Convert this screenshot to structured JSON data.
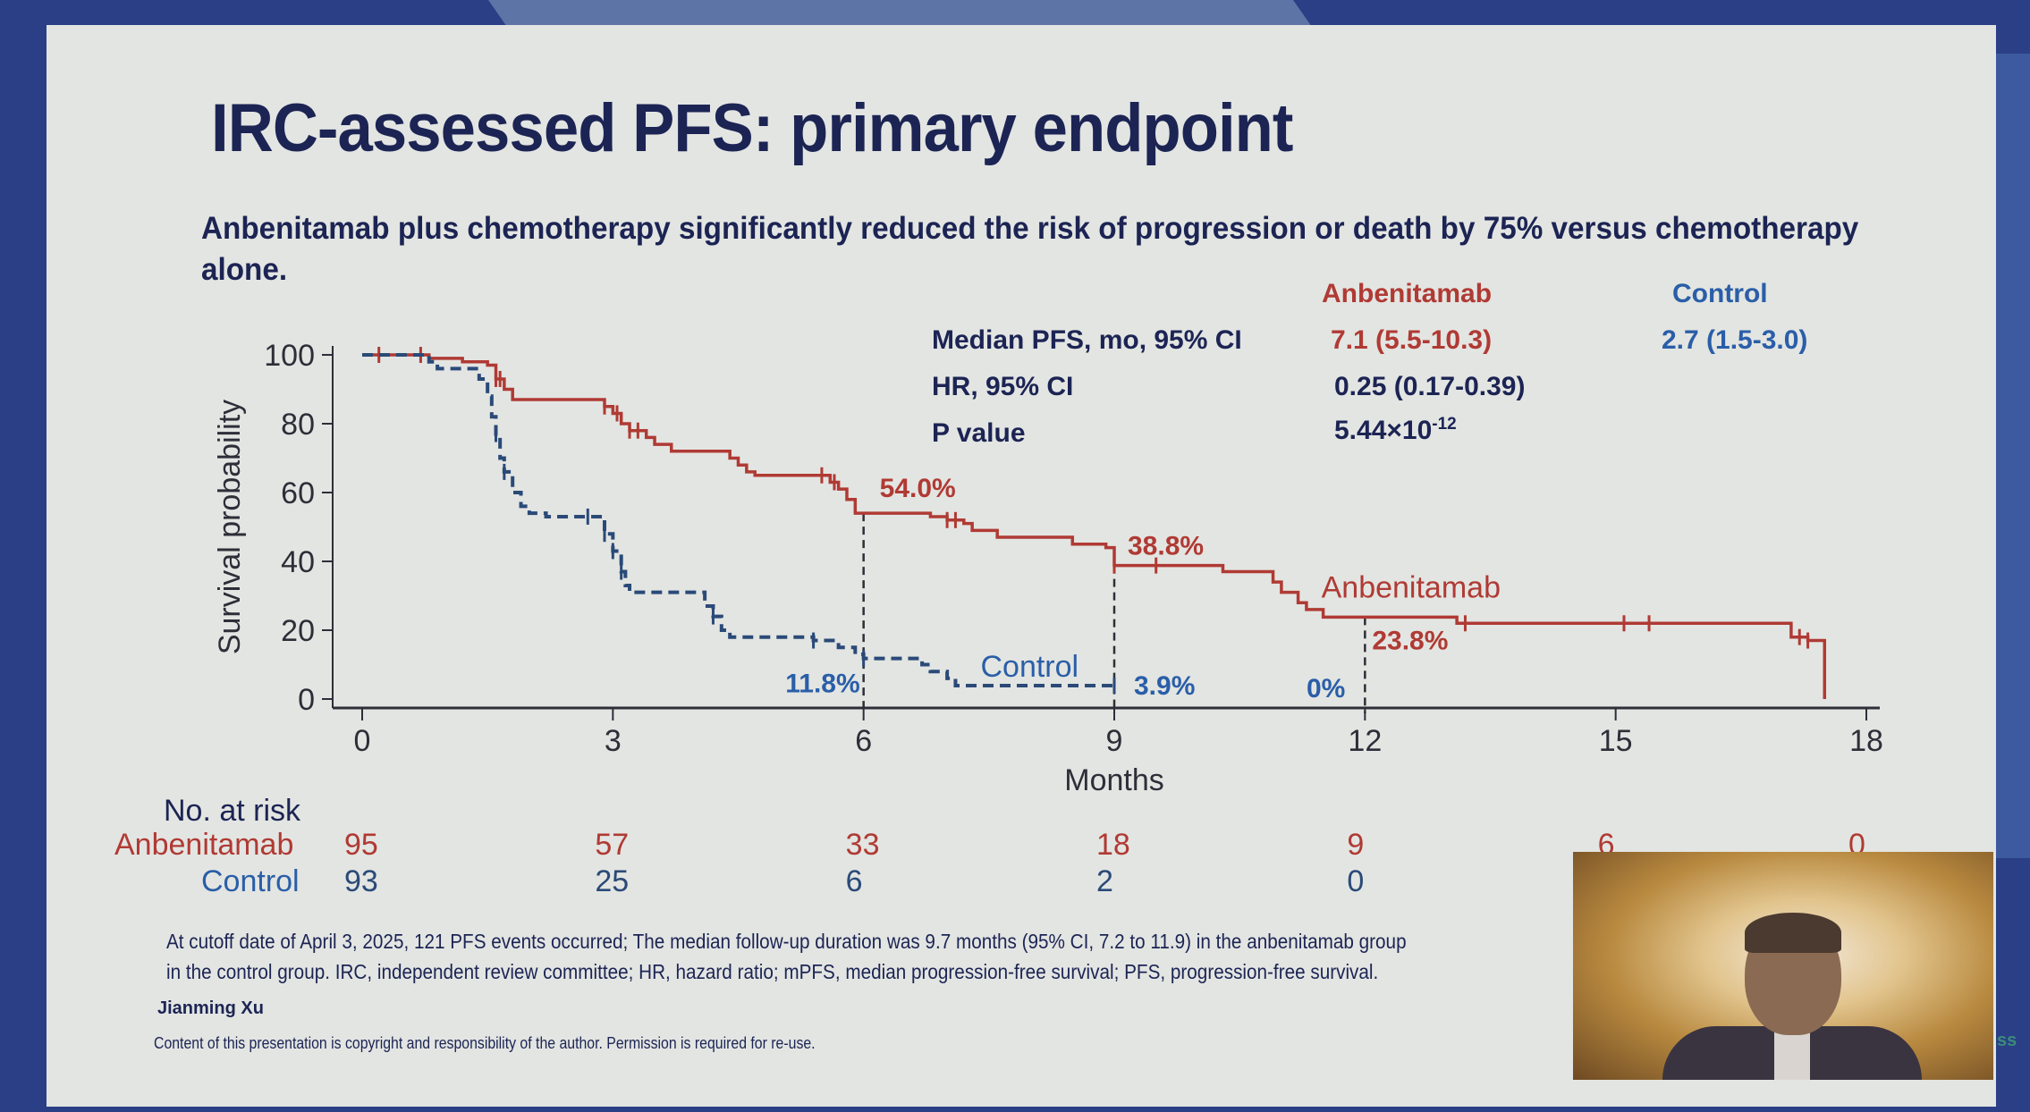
{
  "slide": {
    "title": "IRC-assessed PFS: primary endpoint",
    "subtitle": "Anbenitamab plus chemotherapy significantly reduced the risk of progression or death by 75% versus chemotherapy alone.",
    "stats_table": {
      "col_headers": [
        "Anbenitamab",
        "Control"
      ],
      "rows": [
        {
          "label": "Median PFS, mo, 95% CI",
          "anbenitamab": "7.1 (5.5-10.3)",
          "control": "2.7 (1.5-3.0)"
        },
        {
          "label": "HR, 95% CI",
          "value": "0.25 (0.17-0.39)"
        },
        {
          "label": "P value",
          "value_base": "5.44×10",
          "value_exp": "-12"
        }
      ]
    },
    "number_at_risk": {
      "heading": "No. at risk",
      "rows": [
        {
          "group": "Anbenitamab",
          "values": [
            "95",
            "57",
            "33",
            "18",
            "9",
            "6",
            "0"
          ]
        },
        {
          "group": "Control",
          "values": [
            "93",
            "25",
            "6",
            "2",
            "0"
          ]
        }
      ]
    },
    "footnote_line1": "At cutoff date of April 3, 2025, 121 PFS events occurred; The median follow-up duration was 9.7 months (95% CI, 7.2 to 11.9) in the anbenitamab group",
    "footnote_line2": "in the control group. IRC, independent review committee; HR, hazard ratio; mPFS, median progression-free survival; PFS, progression-free survival.",
    "author": "Jianming Xu",
    "copyright": "Content of this presentation is copyright and responsibility of the author. Permission is required for re-use.",
    "edge_text": "ss",
    "colors": {
      "anbenitamab": "#b03a34",
      "control": "#2a5ea8",
      "text": "#1c2454"
    }
  },
  "chart_data": {
    "type": "line",
    "subtype": "kaplan-meier step",
    "xlabel": "Months",
    "ylabel": "Survival probability",
    "xlim": [
      0,
      18
    ],
    "ylim": [
      0,
      100
    ],
    "xticks": [
      0,
      3,
      6,
      9,
      12,
      15,
      18
    ],
    "yticks": [
      0,
      20,
      40,
      60,
      80,
      100
    ],
    "grid": false,
    "series": [
      {
        "name": "Anbenitamab",
        "style": "solid",
        "points": [
          [
            0,
            100
          ],
          [
            0.7,
            100
          ],
          [
            0.8,
            99
          ],
          [
            1.2,
            98
          ],
          [
            1.5,
            97
          ],
          [
            1.6,
            93
          ],
          [
            1.7,
            90
          ],
          [
            1.8,
            87
          ],
          [
            2.8,
            87
          ],
          [
            2.9,
            85
          ],
          [
            3.0,
            83
          ],
          [
            3.1,
            80
          ],
          [
            3.2,
            78
          ],
          [
            3.4,
            76
          ],
          [
            3.5,
            74
          ],
          [
            3.7,
            72
          ],
          [
            4.2,
            72
          ],
          [
            4.4,
            70
          ],
          [
            4.5,
            68
          ],
          [
            4.6,
            66
          ],
          [
            4.7,
            65
          ],
          [
            5.5,
            65
          ],
          [
            5.6,
            63
          ],
          [
            5.7,
            61
          ],
          [
            5.8,
            58
          ],
          [
            5.9,
            54
          ],
          [
            6.7,
            54
          ],
          [
            6.8,
            53
          ],
          [
            7.0,
            52
          ],
          [
            7.2,
            51
          ],
          [
            7.3,
            49
          ],
          [
            7.6,
            47
          ],
          [
            8.4,
            47
          ],
          [
            8.5,
            45
          ],
          [
            8.9,
            44
          ],
          [
            9.0,
            38.8
          ],
          [
            10.2,
            38.8
          ],
          [
            10.3,
            37
          ],
          [
            10.8,
            37
          ],
          [
            10.9,
            34
          ],
          [
            11.0,
            31
          ],
          [
            11.2,
            28
          ],
          [
            11.3,
            26
          ],
          [
            11.5,
            23.8
          ],
          [
            13.0,
            23.8
          ],
          [
            13.1,
            22
          ],
          [
            17.0,
            22
          ],
          [
            17.1,
            18
          ],
          [
            17.3,
            17
          ],
          [
            17.4,
            17
          ],
          [
            17.5,
            0
          ]
        ],
        "censor_x": [
          0.2,
          0.7,
          1.6,
          1.65,
          2.9,
          3.05,
          3.2,
          3.3,
          5.5,
          5.65,
          7.0,
          7.1,
          9.0,
          9.5,
          13.2,
          15.1,
          15.4,
          17.2,
          17.3
        ],
        "annotations": [
          {
            "x": 6,
            "y": 54.0,
            "label": "54.0%"
          },
          {
            "x": 9,
            "y": 38.8,
            "label": "38.8%"
          },
          {
            "x": 12,
            "y": 23.8,
            "label": "23.8%"
          }
        ],
        "curve_label": "Anbenitamab"
      },
      {
        "name": "Control",
        "style": "dashed",
        "points": [
          [
            0,
            100
          ],
          [
            0.7,
            100
          ],
          [
            0.8,
            98
          ],
          [
            0.9,
            96
          ],
          [
            1.3,
            96
          ],
          [
            1.4,
            93
          ],
          [
            1.5,
            88
          ],
          [
            1.55,
            82
          ],
          [
            1.6,
            77
          ],
          [
            1.65,
            70
          ],
          [
            1.7,
            66
          ],
          [
            1.8,
            60
          ],
          [
            1.9,
            56
          ],
          [
            2.0,
            54
          ],
          [
            2.2,
            53
          ],
          [
            2.8,
            53
          ],
          [
            2.9,
            48
          ],
          [
            3.0,
            43
          ],
          [
            3.1,
            37
          ],
          [
            3.15,
            33
          ],
          [
            3.2,
            31
          ],
          [
            4.0,
            31
          ],
          [
            4.1,
            27
          ],
          [
            4.2,
            24
          ],
          [
            4.3,
            20
          ],
          [
            4.4,
            18
          ],
          [
            5.3,
            18
          ],
          [
            5.4,
            17
          ],
          [
            5.7,
            15
          ],
          [
            5.9,
            13
          ],
          [
            6.0,
            11.8
          ],
          [
            6.5,
            11.8
          ],
          [
            6.7,
            10
          ],
          [
            6.8,
            8
          ],
          [
            7.0,
            6
          ],
          [
            7.1,
            3.9
          ],
          [
            9.0,
            3.9
          ]
        ],
        "censor_x": [
          1.6,
          1.7,
          2.7,
          2.9,
          3.0,
          3.1,
          4.2,
          5.4,
          6.0,
          9.0
        ],
        "annotations": [
          {
            "x": 6,
            "y": 11.8,
            "label": "11.8%"
          },
          {
            "x": 9,
            "y": 3.9,
            "label": "3.9%"
          },
          {
            "x": 12,
            "y": 0,
            "label": "0%"
          }
        ],
        "curve_label": "Control"
      }
    ],
    "reference_lines_x": [
      6,
      9,
      12
    ]
  }
}
